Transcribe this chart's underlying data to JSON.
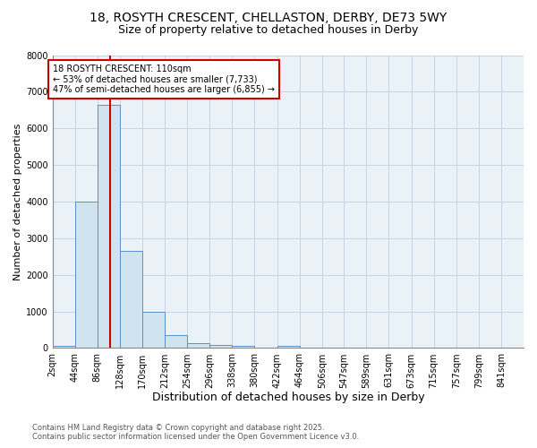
{
  "title1": "18, ROSYTH CRESCENT, CHELLASTON, DERBY, DE73 5WY",
  "title2": "Size of property relative to detached houses in Derby",
  "xlabel": "Distribution of detached houses by size in Derby",
  "ylabel": "Number of detached properties",
  "bin_labels": [
    "2sqm",
    "44sqm",
    "86sqm",
    "128sqm",
    "170sqm",
    "212sqm",
    "254sqm",
    "296sqm",
    "338sqm",
    "380sqm",
    "422sqm",
    "464sqm",
    "506sqm",
    "547sqm",
    "589sqm",
    "631sqm",
    "673sqm",
    "715sqm",
    "757sqm",
    "799sqm",
    "841sqm"
  ],
  "bin_edges": [
    2,
    44,
    86,
    128,
    170,
    212,
    254,
    296,
    338,
    380,
    422,
    464,
    506,
    547,
    589,
    631,
    673,
    715,
    757,
    799,
    841
  ],
  "bar_heights": [
    55,
    4000,
    6630,
    2650,
    1000,
    350,
    130,
    75,
    50,
    5,
    60,
    0,
    0,
    0,
    0,
    0,
    0,
    0,
    0,
    0
  ],
  "bar_color": "#d0e4f0",
  "bar_edge_color": "#5b8fc9",
  "grid_color": "#c5d5e5",
  "plot_bg_color": "#eaf2f8",
  "fig_bg_color": "#ffffff",
  "property_line_x": 110,
  "property_line_color": "#cc0000",
  "annotation_text": "18 ROSYTH CRESCENT: 110sqm\n← 53% of detached houses are smaller (7,733)\n47% of semi-detached houses are larger (6,855) →",
  "annotation_box_edge_color": "#cc0000",
  "annotation_bg_color": "#ffffff",
  "ylim": [
    0,
    8000
  ],
  "yticks": [
    0,
    1000,
    2000,
    3000,
    4000,
    5000,
    6000,
    7000,
    8000
  ],
  "footer1": "Contains HM Land Registry data © Crown copyright and database right 2025.",
  "footer2": "Contains public sector information licensed under the Open Government Licence v3.0.",
  "title1_fontsize": 10,
  "title2_fontsize": 9,
  "xlabel_fontsize": 9,
  "ylabel_fontsize": 8,
  "tick_fontsize": 7,
  "annotation_fontsize": 7,
  "footer_fontsize": 6
}
